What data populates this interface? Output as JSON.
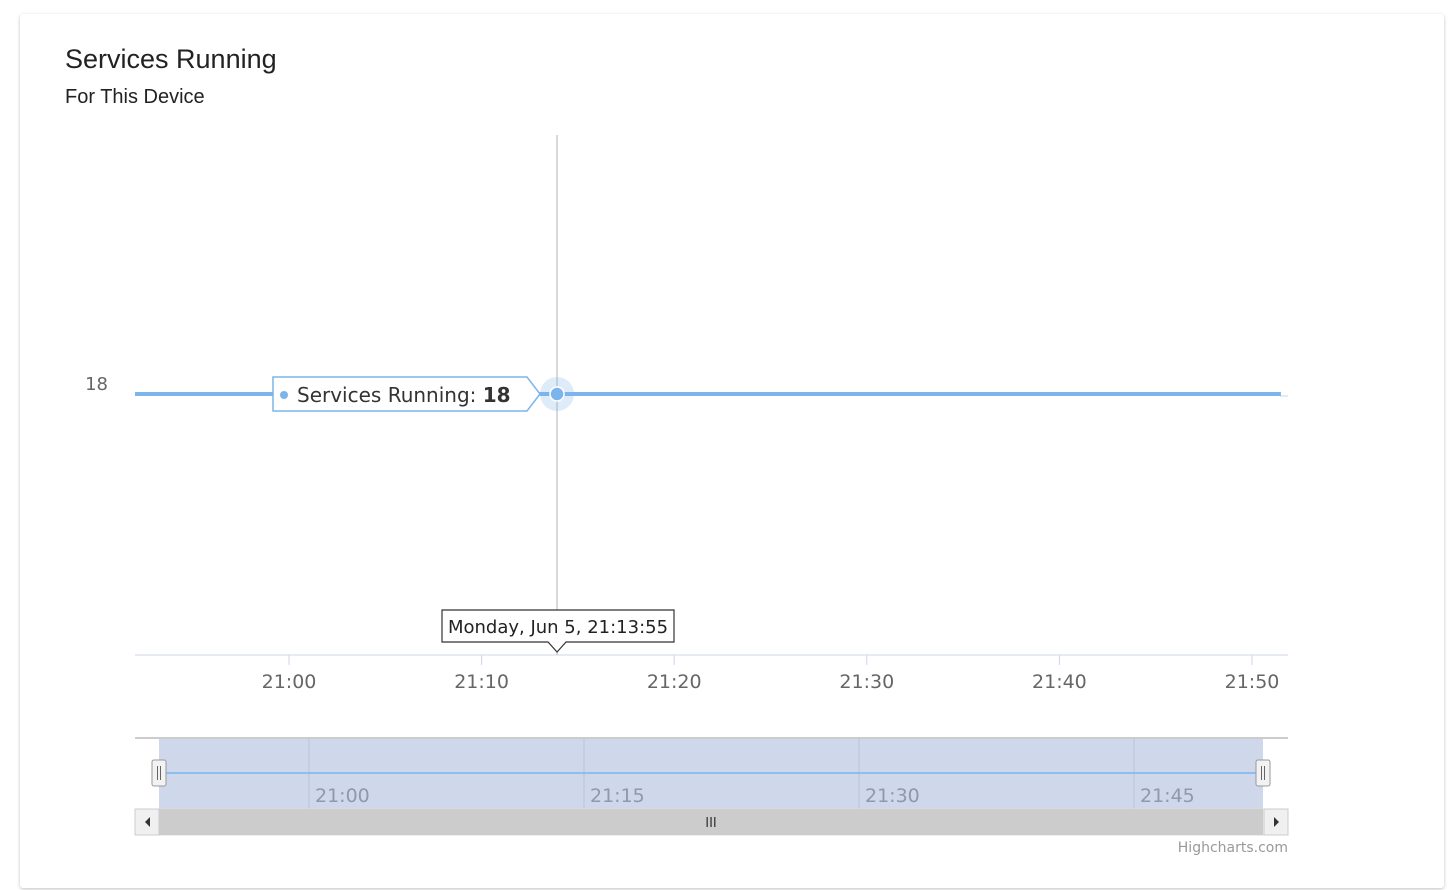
{
  "card": {
    "title": "Services Running",
    "subtitle": "For This Device"
  },
  "credits": "Highcharts.com",
  "chart_data": {
    "type": "line",
    "title": "Services Running",
    "subtitle": "For This Device",
    "x_range": [
      "20:52",
      "21:52"
    ],
    "xticks": [
      "21:00",
      "21:10",
      "21:20",
      "21:30",
      "21:40",
      "21:50"
    ],
    "yticks": [
      18
    ],
    "ylim": [
      17,
      19
    ],
    "series": [
      {
        "name": "Services Running",
        "color": "#7cb5ec",
        "x": [
          "20:52",
          "21:51:30"
        ],
        "values": [
          18,
          18
        ]
      }
    ],
    "tooltip": {
      "series_label": "Services Running:",
      "value": "18",
      "header": "Monday, Jun 5, 21:13:55",
      "x": "21:13:55"
    },
    "navigator": {
      "xticks": [
        "21:00",
        "21:15",
        "21:30",
        "21:45"
      ],
      "selected_range": [
        "20:52",
        "21:52"
      ],
      "mask_color": "#cfd8ea",
      "scrollbar_grip": "III"
    },
    "grid": false
  }
}
